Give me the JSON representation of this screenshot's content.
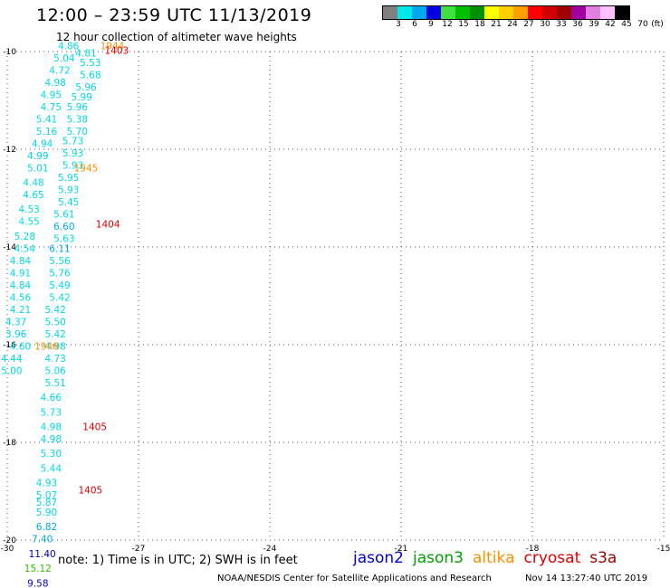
{
  "header": {
    "title": "12:00 – 23:59 UTC 11/13/2019",
    "subtitle": "12 hour collection of altimeter wave heights"
  },
  "legend": {
    "unit": "(ft)",
    "bins": [
      {
        "color": "#808080",
        "label": "3"
      },
      {
        "color": "#00e8e8",
        "label": "6"
      },
      {
        "color": "#00a8f0",
        "label": "9"
      },
      {
        "color": "#0000e0",
        "label": "12"
      },
      {
        "color": "#40e040",
        "label": "15"
      },
      {
        "color": "#00c000",
        "label": "18"
      },
      {
        "color": "#009000",
        "label": "21"
      },
      {
        "color": "#ffff00",
        "label": "24"
      },
      {
        "color": "#ffd000",
        "label": "27"
      },
      {
        "color": "#ffa000",
        "label": "30"
      },
      {
        "color": "#ff0000",
        "label": "33"
      },
      {
        "color": "#d00000",
        "label": "36"
      },
      {
        "color": "#a00000",
        "label": "39"
      },
      {
        "color": "#a000a0",
        "label": "42"
      },
      {
        "color": "#e080e0",
        "label": "45"
      },
      {
        "color": "#ffc0ff",
        "label": "70"
      },
      {
        "color": "#000000",
        "label": ""
      }
    ]
  },
  "note": "note: 1) Time is in UTC; 2) SWH is in feet",
  "sources": [
    {
      "name": "jason2",
      "color": "#0000d0"
    },
    {
      "name": "jason3",
      "color": "#00a000"
    },
    {
      "name": "altika",
      "color": "#ff9000"
    },
    {
      "name": "cryosat",
      "color": "#e00000"
    },
    {
      "name": "s3a",
      "color": "#a00000"
    }
  ],
  "footer": {
    "credit": "NOAA/NESDIS Center for Satellite Applications and Research",
    "timestamp": "Nov 14 13:27:40 UTC 2019"
  },
  "chart_data": {
    "type": "scatter",
    "xlim": [
      -30,
      -15
    ],
    "ylim": [
      -20,
      -10
    ],
    "x_ticks": [
      -30,
      -27,
      -24,
      -21,
      -18,
      -15
    ],
    "y_ticks": [
      -10,
      -12,
      -14,
      -16,
      -18,
      -20
    ],
    "grid": true,
    "colors": {
      "cyan": "#00d8e8",
      "sky": "#00a8f0",
      "blue": "#0000d0",
      "green": "#30c000",
      "orange": "#ff9000",
      "red": "#e00000"
    },
    "points": [
      {
        "lon": -28.6,
        "lat": -9.95,
        "label": "4.86",
        "color": "cyan"
      },
      {
        "lon": -28.2,
        "lat": -10.1,
        "label": "4.81",
        "color": "cyan"
      },
      {
        "lon": -27.6,
        "lat": -9.95,
        "label": "1944",
        "color": "orange"
      },
      {
        "lon": -27.5,
        "lat": -10.05,
        "label": "1403",
        "color": "red"
      },
      {
        "lon": -28.7,
        "lat": -10.2,
        "label": "5.04",
        "color": "cyan"
      },
      {
        "lon": -28.1,
        "lat": -10.3,
        "label": "5.53",
        "color": "cyan"
      },
      {
        "lon": -28.8,
        "lat": -10.45,
        "label": "4.72",
        "color": "cyan"
      },
      {
        "lon": -28.1,
        "lat": -10.55,
        "label": "5.68",
        "color": "cyan"
      },
      {
        "lon": -28.9,
        "lat": -10.7,
        "label": "4.98",
        "color": "cyan"
      },
      {
        "lon": -28.2,
        "lat": -10.8,
        "label": "5.96",
        "color": "cyan"
      },
      {
        "lon": -29.0,
        "lat": -10.95,
        "label": "4.95",
        "color": "cyan"
      },
      {
        "lon": -28.3,
        "lat": -11.0,
        "label": "5.99",
        "color": "cyan"
      },
      {
        "lon": -29.0,
        "lat": -11.2,
        "label": "4.75",
        "color": "cyan"
      },
      {
        "lon": -28.4,
        "lat": -11.2,
        "label": "5.96",
        "color": "cyan"
      },
      {
        "lon": -29.1,
        "lat": -11.45,
        "label": "5.41",
        "color": "cyan"
      },
      {
        "lon": -28.4,
        "lat": -11.45,
        "label": "5.38",
        "color": "cyan"
      },
      {
        "lon": -29.1,
        "lat": -11.7,
        "label": "5.16",
        "color": "cyan"
      },
      {
        "lon": -28.4,
        "lat": -11.7,
        "label": "5.70",
        "color": "cyan"
      },
      {
        "lon": -29.2,
        "lat": -11.95,
        "label": "4.94",
        "color": "cyan"
      },
      {
        "lon": -28.5,
        "lat": -11.9,
        "label": "5.73",
        "color": "cyan"
      },
      {
        "lon": -29.3,
        "lat": -12.2,
        "label": "4.99",
        "color": "cyan"
      },
      {
        "lon": -28.5,
        "lat": -12.15,
        "label": "5.93",
        "color": "cyan"
      },
      {
        "lon": -29.3,
        "lat": -12.45,
        "label": "5.01",
        "color": "cyan"
      },
      {
        "lon": -28.5,
        "lat": -12.4,
        "label": "5.93",
        "color": "cyan"
      },
      {
        "lon": -28.2,
        "lat": -12.45,
        "label": "1945",
        "color": "orange"
      },
      {
        "lon": -28.6,
        "lat": -12.65,
        "label": "5.95",
        "color": "cyan"
      },
      {
        "lon": -29.4,
        "lat": -12.75,
        "label": "4.48",
        "color": "cyan"
      },
      {
        "lon": -28.6,
        "lat": -12.9,
        "label": "5.93",
        "color": "cyan"
      },
      {
        "lon": -29.4,
        "lat": -13.0,
        "label": "4.65",
        "color": "cyan"
      },
      {
        "lon": -28.6,
        "lat": -13.15,
        "label": "5.45",
        "color": "cyan"
      },
      {
        "lon": -29.5,
        "lat": -13.3,
        "label": "4.53",
        "color": "cyan"
      },
      {
        "lon": -28.7,
        "lat": -13.4,
        "label": "5.61",
        "color": "cyan"
      },
      {
        "lon": -29.5,
        "lat": -13.55,
        "label": "4.55",
        "color": "cyan"
      },
      {
        "lon": -28.7,
        "lat": -13.65,
        "label": "6.60",
        "color": "sky"
      },
      {
        "lon": -27.7,
        "lat": -13.6,
        "label": "1404",
        "color": "red"
      },
      {
        "lon": -29.6,
        "lat": -13.85,
        "label": "5.28",
        "color": "cyan"
      },
      {
        "lon": -28.7,
        "lat": -13.9,
        "label": "5.63",
        "color": "cyan"
      },
      {
        "lon": -29.6,
        "lat": -14.1,
        "label": "4.54",
        "color": "cyan"
      },
      {
        "lon": -28.8,
        "lat": -14.1,
        "label": "6.11",
        "color": "sky"
      },
      {
        "lon": -29.7,
        "lat": -14.35,
        "label": "4.84",
        "color": "cyan"
      },
      {
        "lon": -28.8,
        "lat": -14.35,
        "label": "5.56",
        "color": "cyan"
      },
      {
        "lon": -29.7,
        "lat": -14.6,
        "label": "4.91",
        "color": "cyan"
      },
      {
        "lon": -28.8,
        "lat": -14.6,
        "label": "5.76",
        "color": "cyan"
      },
      {
        "lon": -29.7,
        "lat": -14.85,
        "label": "4.84",
        "color": "cyan"
      },
      {
        "lon": -28.8,
        "lat": -14.85,
        "label": "5.49",
        "color": "cyan"
      },
      {
        "lon": -29.7,
        "lat": -15.1,
        "label": "4.56",
        "color": "cyan"
      },
      {
        "lon": -28.8,
        "lat": -15.1,
        "label": "5.42",
        "color": "cyan"
      },
      {
        "lon": -29.7,
        "lat": -15.35,
        "label": "4.21",
        "color": "cyan"
      },
      {
        "lon": -28.9,
        "lat": -15.35,
        "label": "5.42",
        "color": "cyan"
      },
      {
        "lon": -29.8,
        "lat": -15.6,
        "label": "4.37",
        "color": "cyan"
      },
      {
        "lon": -28.9,
        "lat": -15.6,
        "label": "5.50",
        "color": "cyan"
      },
      {
        "lon": -29.8,
        "lat": -15.85,
        "label": "3.96",
        "color": "cyan"
      },
      {
        "lon": -28.9,
        "lat": -15.85,
        "label": "5.42",
        "color": "cyan"
      },
      {
        "lon": -29.7,
        "lat": -16.1,
        "label": "4.60",
        "color": "cyan"
      },
      {
        "lon": -28.9,
        "lat": -16.1,
        "label": "4.98",
        "color": "cyan"
      },
      {
        "lon": -29.1,
        "lat": -16.1,
        "label": "1946",
        "color": "orange"
      },
      {
        "lon": -29.9,
        "lat": -16.35,
        "label": "4.44",
        "color": "cyan"
      },
      {
        "lon": -28.9,
        "lat": -16.35,
        "label": "4.73",
        "color": "cyan"
      },
      {
        "lon": -29.9,
        "lat": -16.6,
        "label": "5.00",
        "color": "cyan"
      },
      {
        "lon": -28.9,
        "lat": -16.6,
        "label": "5.06",
        "color": "cyan"
      },
      {
        "lon": -28.9,
        "lat": -16.85,
        "label": "5.51",
        "color": "cyan"
      },
      {
        "lon": -29.0,
        "lat": -17.15,
        "label": "4.66",
        "color": "cyan"
      },
      {
        "lon": -29.0,
        "lat": -17.45,
        "label": "5.73",
        "color": "cyan"
      },
      {
        "lon": -29.0,
        "lat": -17.75,
        "label": "4.98",
        "color": "cyan"
      },
      {
        "lon": -28.0,
        "lat": -17.75,
        "label": "1405",
        "color": "red"
      },
      {
        "lon": -29.0,
        "lat": -18.0,
        "label": "4.98",
        "color": "cyan"
      },
      {
        "lon": -29.0,
        "lat": -18.3,
        "label": "5.30",
        "color": "cyan"
      },
      {
        "lon": -29.0,
        "lat": -18.6,
        "label": "5.44",
        "color": "cyan"
      },
      {
        "lon": -29.1,
        "lat": -18.9,
        "label": "4.93",
        "color": "cyan"
      },
      {
        "lon": -29.1,
        "lat": -19.15,
        "label": "5.07",
        "color": "cyan"
      },
      {
        "lon": -29.1,
        "lat": -19.3,
        "label": "5.87",
        "color": "cyan"
      },
      {
        "lon": -28.1,
        "lat": -19.05,
        "label": "1405",
        "color": "red"
      },
      {
        "lon": -29.1,
        "lat": -19.5,
        "label": "5.90",
        "color": "cyan"
      },
      {
        "lon": -29.1,
        "lat": -19.8,
        "label": "6.82",
        "color": "sky"
      },
      {
        "lon": -29.2,
        "lat": -20.05,
        "label": "7.40",
        "color": "sky"
      },
      {
        "lon": -29.2,
        "lat": -20.35,
        "label": "11.40",
        "color": "blue"
      },
      {
        "lon": -29.3,
        "lat": -20.65,
        "label": "15.12",
        "color": "green"
      },
      {
        "lon": -29.3,
        "lat": -20.95,
        "label": "9.58",
        "color": "blue"
      }
    ]
  }
}
